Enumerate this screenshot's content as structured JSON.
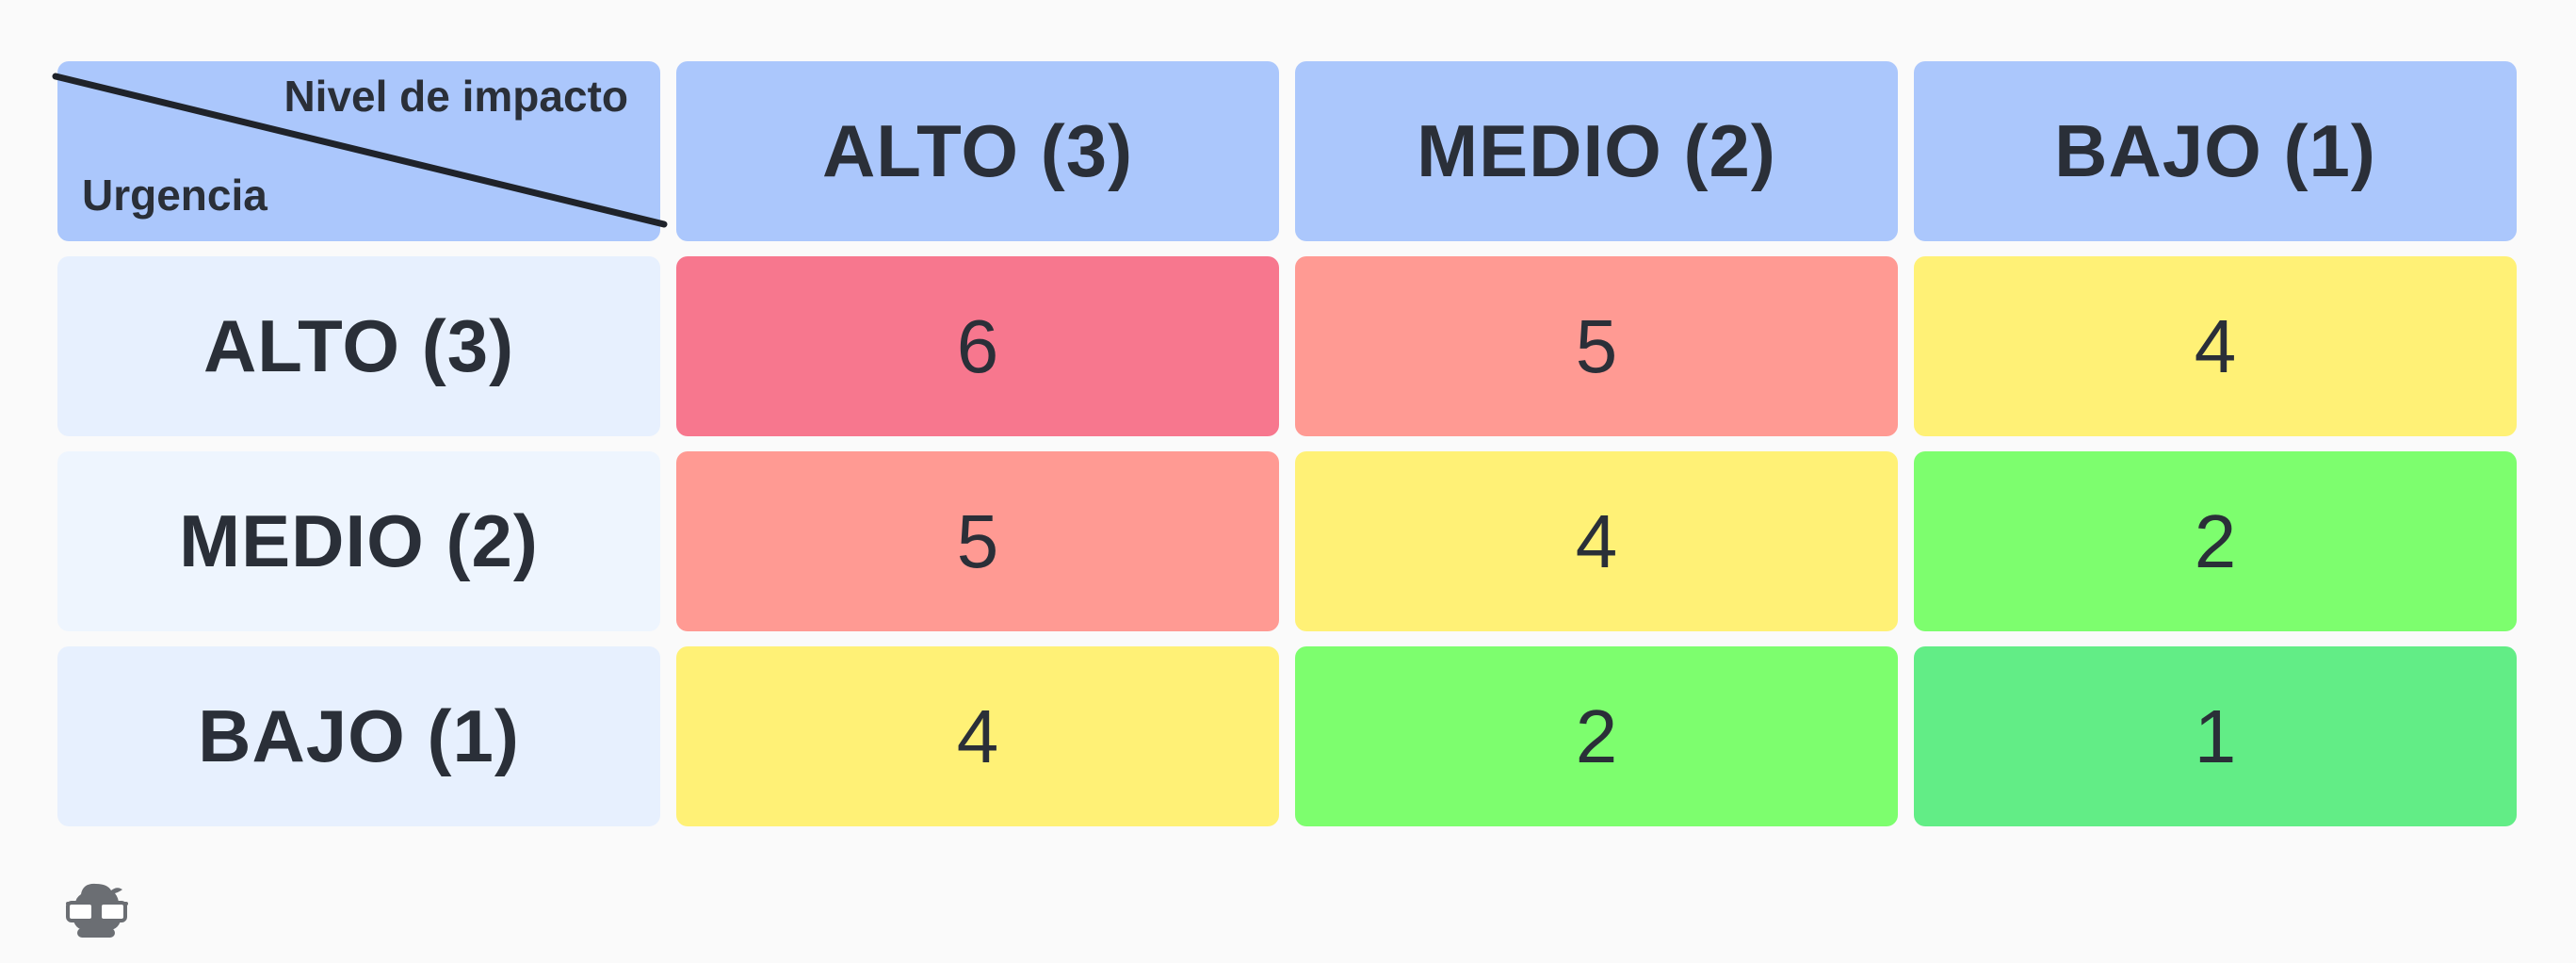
{
  "matrix": {
    "corner": {
      "impact_label": "Nivel de impacto",
      "urgency_label": "Urgencia"
    },
    "columns": [
      "ALTO (3)",
      "MEDIO (2)",
      "BAJO (1)"
    ],
    "rows": [
      {
        "label": "ALTO (3)",
        "values": [
          "6",
          "5",
          "4"
        ]
      },
      {
        "label": "MEDIO (2)",
        "values": [
          "5",
          "4",
          "2"
        ]
      },
      {
        "label": "BAJO (1)",
        "values": [
          "4",
          "2",
          "1"
        ]
      }
    ],
    "score_colors": {
      "6": "#f7778e",
      "5": "#ff9a93",
      "4": "#fff176",
      "2": "#7dfe6e",
      "1": "#62ed86"
    }
  },
  "logo": {
    "icon": "glasses-mascot-icon"
  }
}
